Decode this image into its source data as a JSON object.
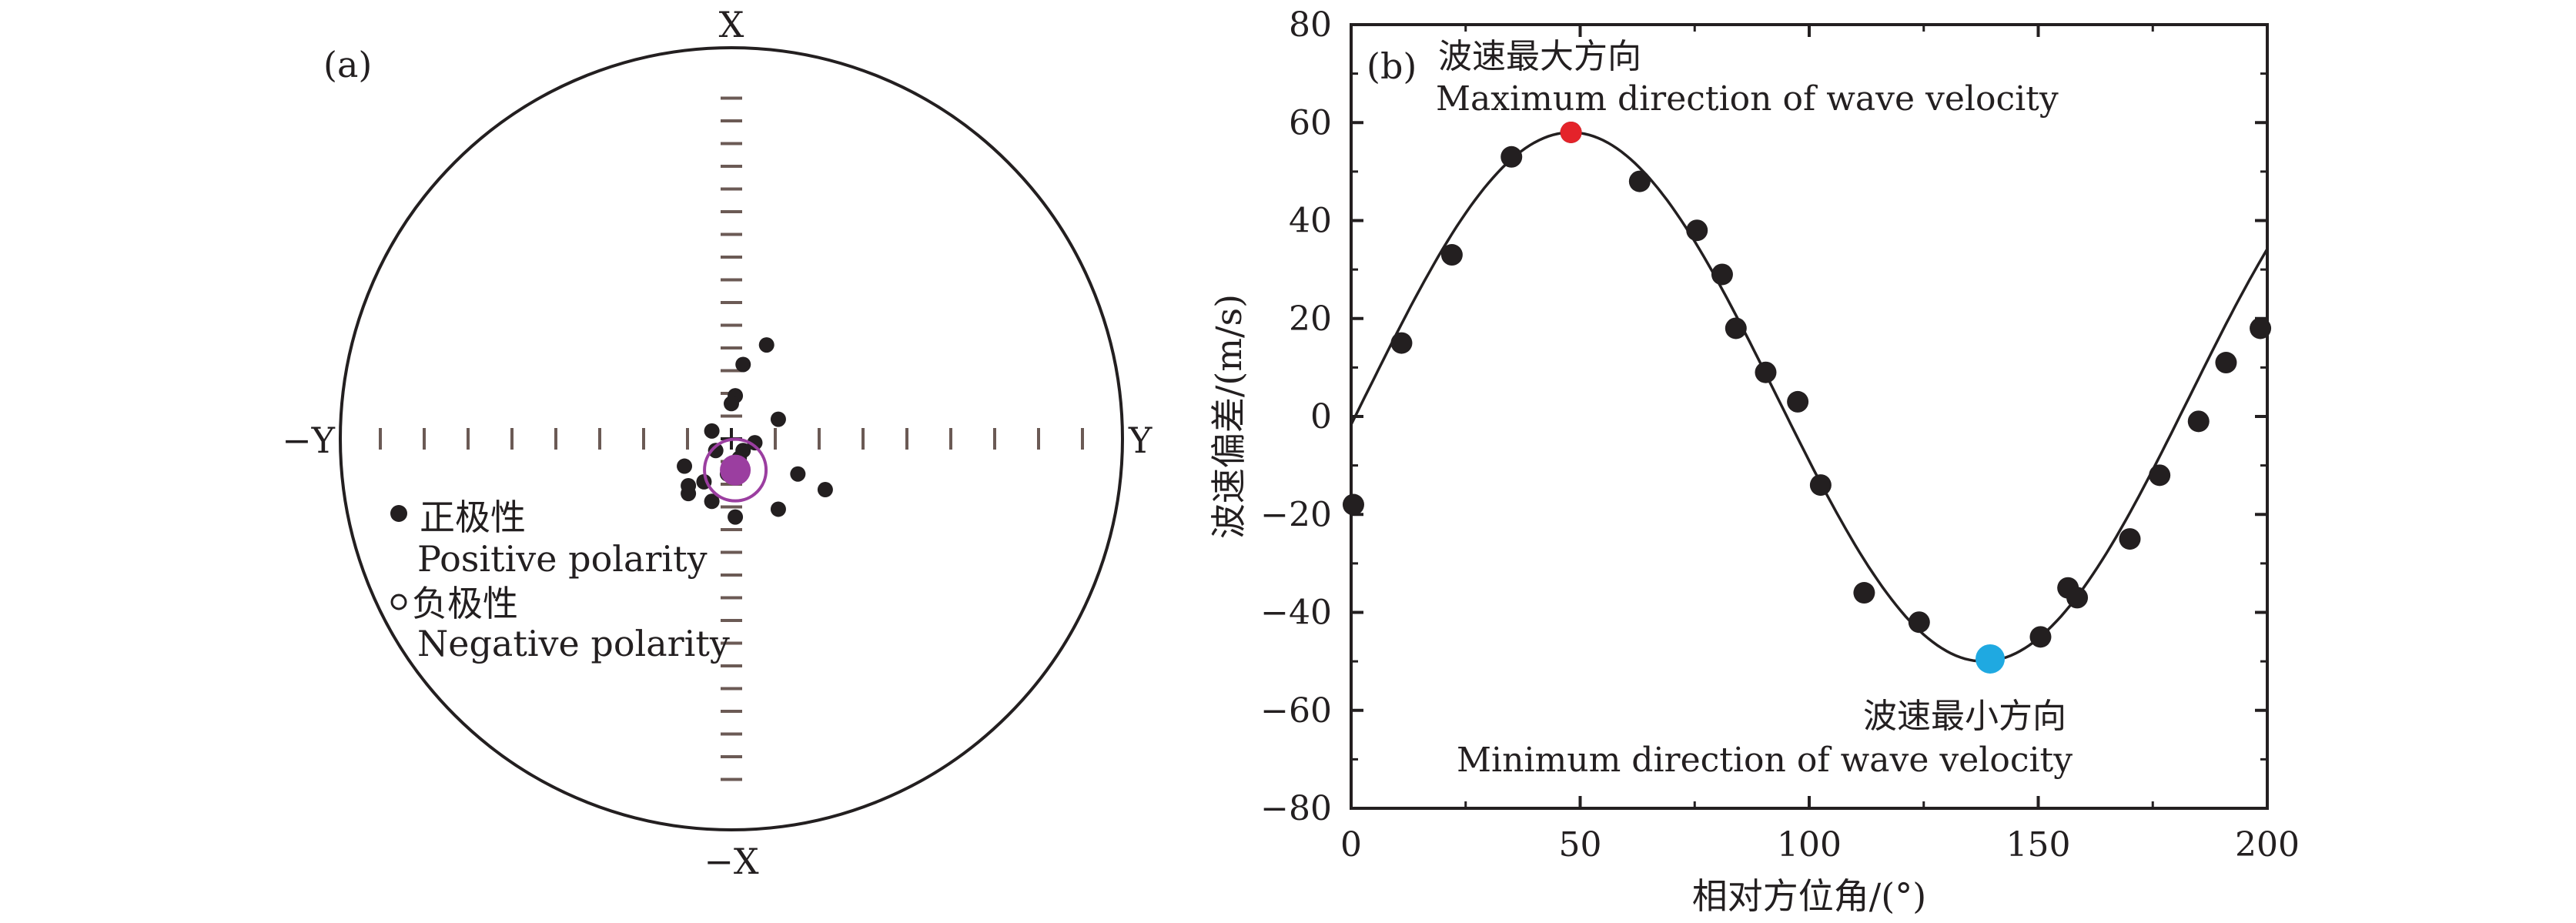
{
  "panel_a": {
    "panel_label": "(a)",
    "axis_labels": {
      "top": "X",
      "bottom": "−X",
      "left": "−Y",
      "right": "Y"
    },
    "legend": [
      {
        "symbol": "filled-dot",
        "label_cn": "正极性",
        "label_en": "Positive polarity"
      },
      {
        "symbol": "open-dot",
        "label_cn": "负极性",
        "label_en": "Negative polarity"
      }
    ],
    "colors": {
      "positive": "#231f20",
      "centroid": "#9b3ea0",
      "tick": "#6b5a55"
    }
  },
  "panel_b": {
    "panel_label": "(b)",
    "annotations": {
      "max_cn": "波速最大方向",
      "max_en": "Maximum direction of wave velocity",
      "min_cn": "波速最小方向",
      "min_en": "Minimum direction of wave velocity"
    },
    "colors": {
      "max_point": "#e4232a",
      "min_point": "#1fa9e1",
      "points": "#231f20",
      "curve": "#231f20"
    }
  },
  "chart_data": [
    {
      "type": "scatter",
      "subtype": "polar-stereonet",
      "title": "",
      "radial_labels": [
        "X",
        "−X",
        "−Y",
        "Y"
      ],
      "series": [
        {
          "name": "正极性 Positive polarity",
          "values": []
        },
        {
          "name": "负极性 Negative polarity",
          "values": []
        }
      ],
      "positive_points_xy": [
        [
          0.24,
          0.09
        ],
        [
          -0.18,
          0.12
        ],
        [
          -0.03,
          0.03
        ],
        [
          -0.05,
          0.02
        ],
        [
          -0.13,
          0.24
        ],
        [
          0.05,
          0.12
        ],
        [
          0.11,
          0.01
        ],
        [
          -0.14,
          -0.11
        ],
        [
          -0.11,
          -0.07
        ],
        [
          -0.09,
          -0.01
        ],
        [
          -0.01,
          0.06
        ],
        [
          -0.16,
          -0.05
        ],
        [
          -0.12,
          -0.11
        ],
        [
          -0.03,
          -0.04
        ],
        [
          0.02,
          -0.05
        ],
        [
          -0.07,
          -0.12
        ],
        [
          0.09,
          0.0
        ],
        [
          -0.09,
          0.17
        ],
        [
          0.19,
          0.03
        ],
        [
          -0.2,
          0.01
        ]
      ],
      "centroid_xy": [
        -0.08,
        0.01
      ]
    },
    {
      "type": "scatter",
      "title": "",
      "xlabel": "相对方位角/(°)",
      "ylabel": "波速偏差/(m/s)",
      "xlim": [
        0,
        200
      ],
      "ylim": [
        -80,
        80
      ],
      "xticks": [
        0,
        50,
        100,
        150,
        200
      ],
      "yticks": [
        80,
        60,
        40,
        20,
        0,
        -20,
        -40,
        -60,
        -80
      ],
      "series": [
        {
          "name": "",
          "x": [
            0.5,
            11,
            22,
            35,
            48,
            63,
            75.5,
            81,
            84,
            90.5,
            97.5,
            102.5,
            112,
            124,
            139.5,
            150.5,
            156.5,
            158.5,
            170,
            176.5,
            185,
            191,
            198.5
          ],
          "y": [
            -18,
            15,
            33,
            53,
            58,
            48,
            38,
            29,
            18,
            9,
            3,
            -14,
            -36,
            -42,
            -49.5,
            -45,
            -35,
            -37,
            -25,
            -12,
            -1,
            11,
            18
          ]
        }
      ],
      "fit_curve": {
        "mean": 4,
        "amplitude": 54,
        "max_x": 48,
        "min_x": 138
      },
      "highlight": [
        {
          "label": "波速最大方向",
          "x": 48,
          "y": 58
        },
        {
          "label": "波速最小方向",
          "x": 139.5,
          "y": -49.5
        }
      ]
    }
  ]
}
